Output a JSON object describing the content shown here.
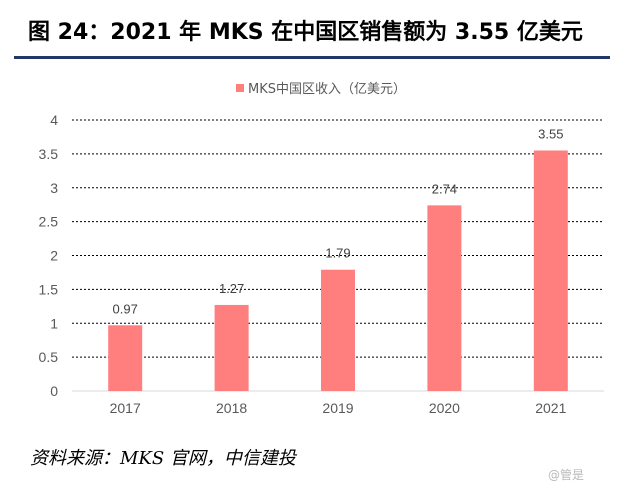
{
  "figure": {
    "title": "图 24：2021 年 MKS 在中国区销售额为 3.55 亿美元",
    "source": "资料来源：MKS 官网，中信建投",
    "watermark": "@管是"
  },
  "colors": {
    "bar": "#ff7f7f",
    "rule": "#1f3864",
    "grid": "#000000"
  },
  "chart_data": {
    "type": "bar",
    "title": "",
    "categories": [
      "2017",
      "2018",
      "2019",
      "2020",
      "2021"
    ],
    "series": [
      {
        "name": "MKS中国区收入（亿美元）",
        "values": [
          0.97,
          1.27,
          1.79,
          2.74,
          3.55
        ]
      }
    ],
    "data_labels": [
      "0.97",
      "1.27",
      "1.79",
      "2.74",
      "3.55"
    ],
    "y_ticks": [
      "0",
      "0.5",
      "1",
      "1.5",
      "2",
      "2.5",
      "3",
      "3.5",
      "4"
    ],
    "ylim": [
      0,
      4
    ],
    "xlabel": "",
    "ylabel": "",
    "grid": "dashed horizontal",
    "legend_position": "top-center"
  }
}
